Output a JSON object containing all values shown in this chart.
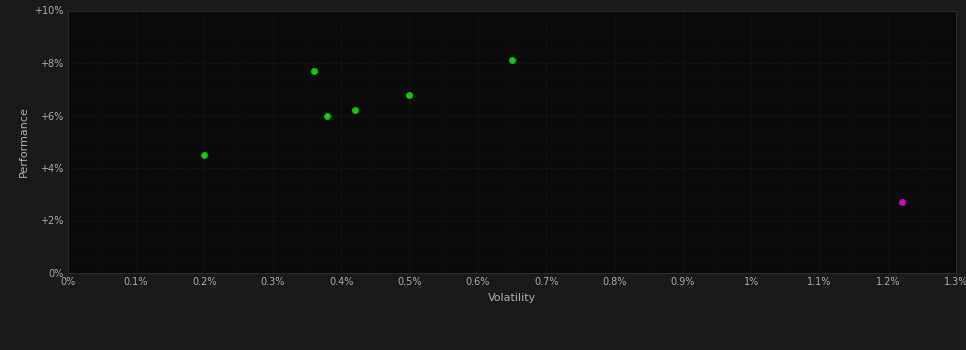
{
  "green_points": [
    [
      0.002,
      0.045
    ],
    [
      0.0036,
      0.077
    ],
    [
      0.0038,
      0.06
    ],
    [
      0.0042,
      0.062
    ],
    [
      0.005,
      0.068
    ],
    [
      0.0065,
      0.081
    ]
  ],
  "magenta_points": [
    [
      0.0122,
      0.027
    ]
  ],
  "green_color": "#00cc00",
  "magenta_color": "#cc00cc",
  "bg_color": "#1a1a1a",
  "plot_bg_color": "#0a0a0a",
  "grid_color": "#2a2a2a",
  "text_color": "#aaaaaa",
  "xlabel": "Volatility",
  "ylabel": "Performance",
  "xlim": [
    0.0,
    0.013
  ],
  "ylim": [
    0.0,
    0.1
  ],
  "xticks": [
    0.0,
    0.001,
    0.002,
    0.003,
    0.004,
    0.005,
    0.006,
    0.007,
    0.008,
    0.009,
    0.01,
    0.011,
    0.012,
    0.013
  ],
  "yticks": [
    0.0,
    0.02,
    0.04,
    0.06,
    0.08,
    0.1
  ],
  "xtick_labels": [
    "0%",
    "0.1%",
    "0.2%",
    "0.3%",
    "0.4%",
    "0.5%",
    "0.6%",
    "0.7%",
    "0.8%",
    "0.9%",
    "1%",
    "1.1%",
    "1.2%",
    "1.3%"
  ],
  "ytick_labels": [
    "0%",
    "+2%",
    "+4%",
    "+6%",
    "+8%",
    "+10%"
  ],
  "marker_size": 25,
  "axis_label_fontsize": 8,
  "tick_fontsize": 7,
  "grid_minor_color": "#222222",
  "minor_ticks_per_major": 4
}
